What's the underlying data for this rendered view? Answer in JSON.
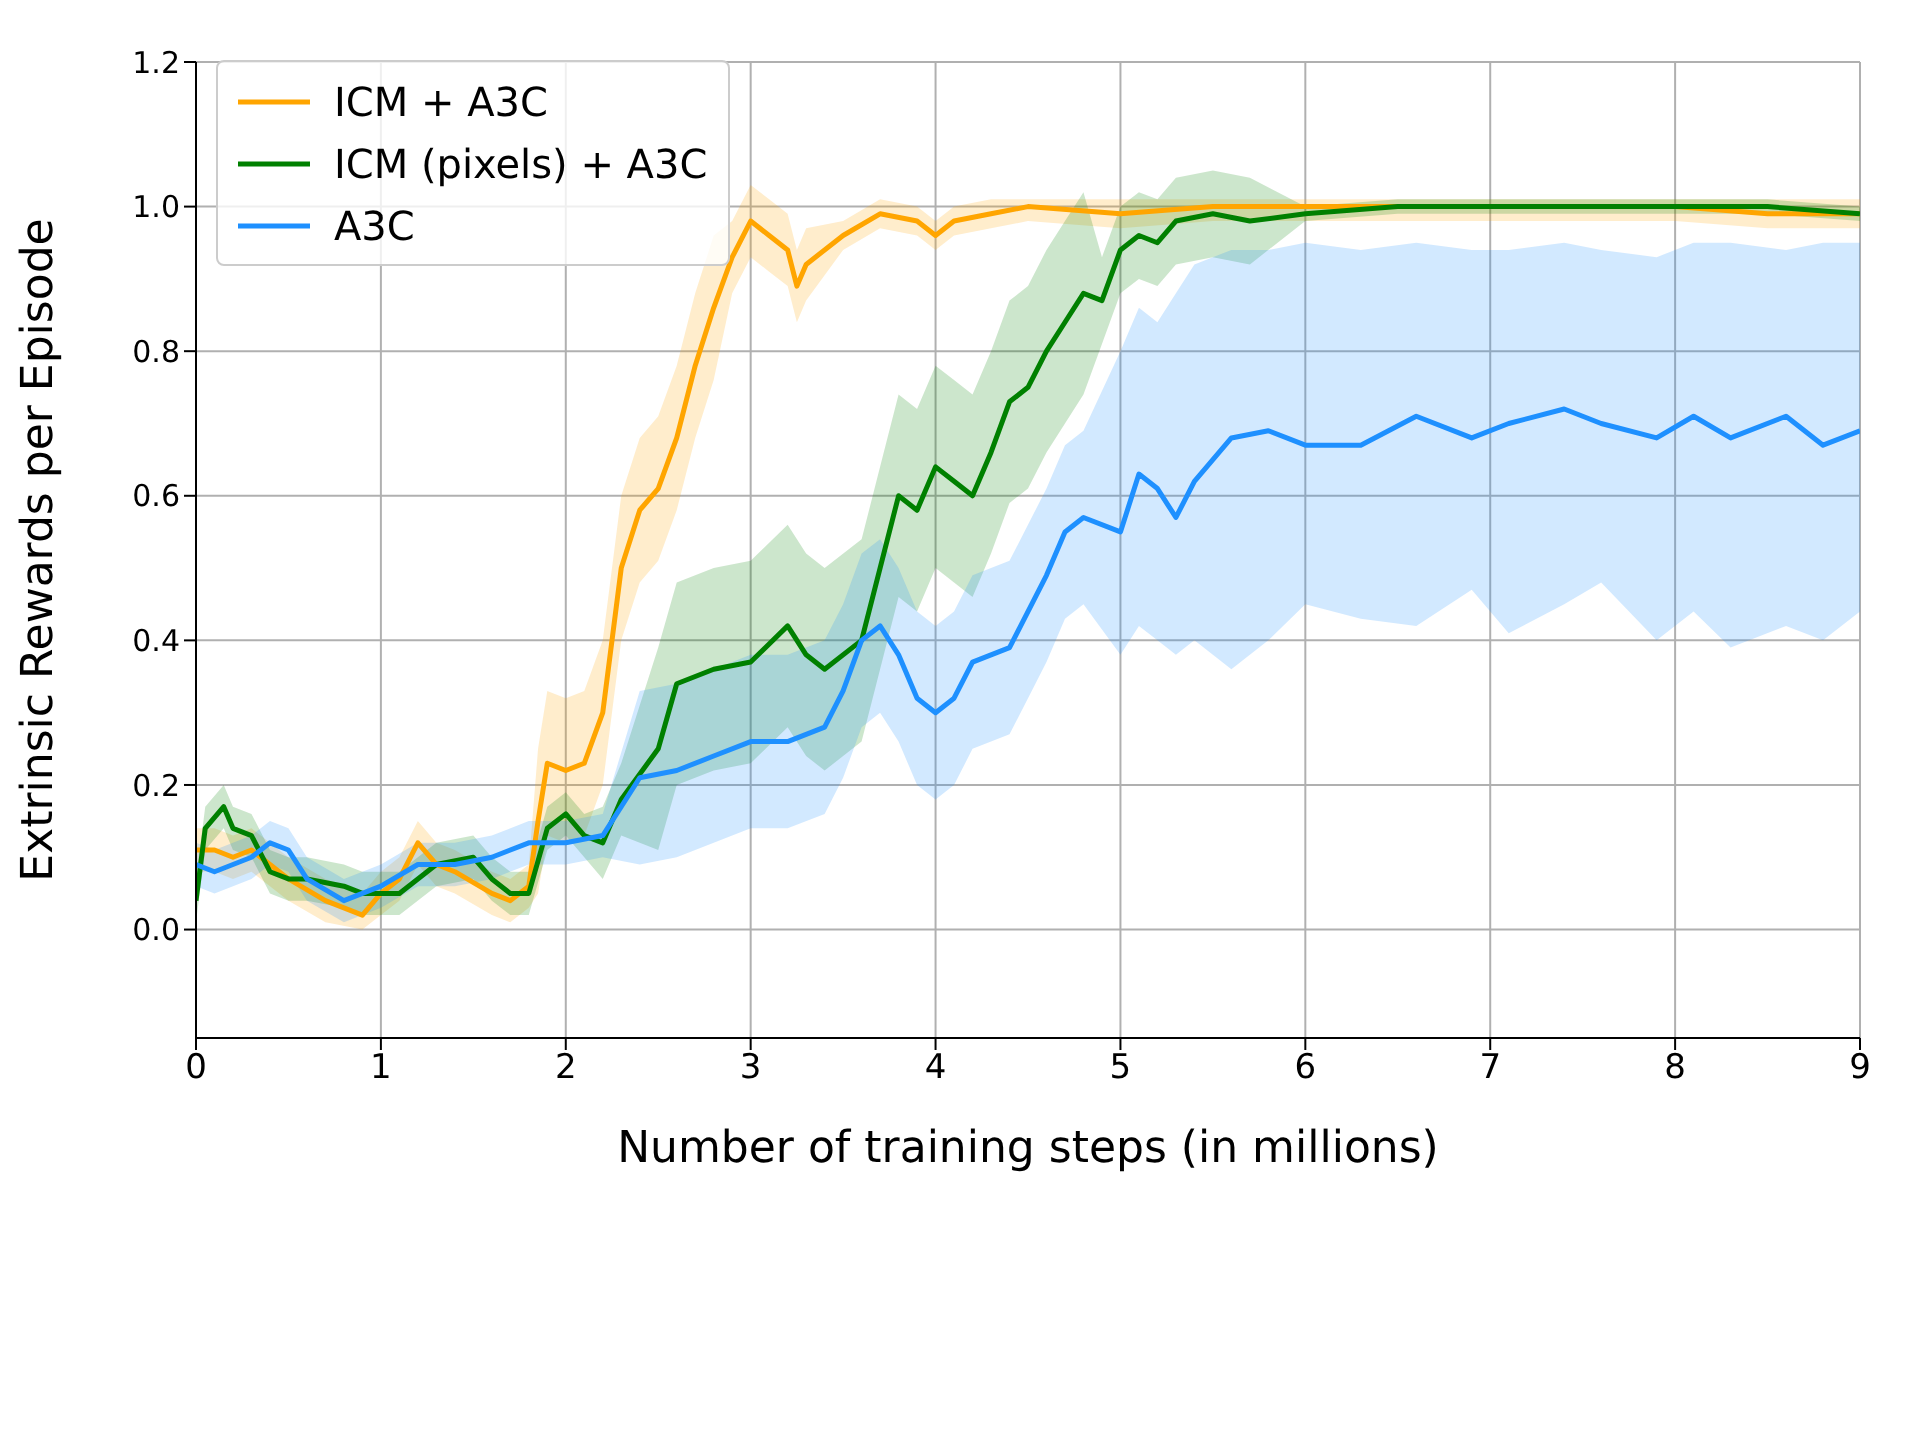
{
  "chart_data": {
    "type": "line",
    "xlabel": "Number of training steps (in millions)",
    "ylabel": "Extrinsic Rewards per Episode",
    "xlim": [
      0,
      9
    ],
    "xticks": [
      0,
      1,
      2,
      3,
      4,
      5,
      6,
      7,
      8,
      9
    ],
    "ylim": [
      -0.15,
      1.2
    ],
    "yticks": [
      {
        "value": 0,
        "label": "0.0"
      },
      {
        "value": 0.2,
        "label": "0.2"
      },
      {
        "value": 0.4,
        "label": "0.4"
      },
      {
        "value": 0.6,
        "label": "0.6"
      },
      {
        "value": 0.8,
        "label": "0.8"
      },
      {
        "value": 1.0,
        "label": "1.0"
      },
      {
        "value": 1.2,
        "label": "1.2"
      }
    ],
    "grid": true,
    "legend": "top left",
    "line_style": "solid",
    "series": [
      {
        "name": "ICM + A3C",
        "color": "#ffa500",
        "x": [
          0,
          0.1,
          0.2,
          0.3,
          0.4,
          0.5,
          0.7,
          0.9,
          1.0,
          1.1,
          1.2,
          1.3,
          1.4,
          1.6,
          1.7,
          1.8,
          1.85,
          1.9,
          2.0,
          2.1,
          2.2,
          2.3,
          2.4,
          2.5,
          2.6,
          2.7,
          2.8,
          2.9,
          3.0,
          3.1,
          3.2,
          3.25,
          3.3,
          3.5,
          3.7,
          3.9,
          4.0,
          4.1,
          4.3,
          4.5,
          5,
          5.5,
          6,
          7,
          8,
          8.5,
          9
        ],
        "values": [
          0.11,
          0.11,
          0.1,
          0.11,
          0.09,
          0.07,
          0.04,
          0.02,
          0.05,
          0.07,
          0.12,
          0.09,
          0.08,
          0.05,
          0.04,
          0.06,
          0.15,
          0.23,
          0.22,
          0.23,
          0.3,
          0.5,
          0.58,
          0.61,
          0.68,
          0.78,
          0.86,
          0.93,
          0.98,
          0.96,
          0.94,
          0.89,
          0.92,
          0.96,
          0.99,
          0.98,
          0.96,
          0.98,
          0.99,
          1.0,
          0.99,
          1.0,
          1.0,
          1.0,
          1.0,
          0.99,
          0.99
        ],
        "lower": [
          0.08,
          0.08,
          0.07,
          0.08,
          0.06,
          0.04,
          0.01,
          0.0,
          0.02,
          0.04,
          0.09,
          0.06,
          0.05,
          0.02,
          0.01,
          0.03,
          0.05,
          0.13,
          0.12,
          0.13,
          0.2,
          0.4,
          0.48,
          0.51,
          0.58,
          0.68,
          0.76,
          0.88,
          0.93,
          0.91,
          0.89,
          0.84,
          0.87,
          0.94,
          0.97,
          0.96,
          0.94,
          0.96,
          0.97,
          0.98,
          0.97,
          0.98,
          0.98,
          0.98,
          0.98,
          0.97,
          0.97
        ],
        "upper": [
          0.14,
          0.14,
          0.13,
          0.14,
          0.12,
          0.1,
          0.07,
          0.05,
          0.08,
          0.1,
          0.15,
          0.12,
          0.11,
          0.08,
          0.07,
          0.09,
          0.25,
          0.33,
          0.32,
          0.33,
          0.4,
          0.6,
          0.68,
          0.71,
          0.78,
          0.88,
          0.96,
          0.98,
          1.03,
          1.01,
          0.99,
          0.94,
          0.97,
          0.98,
          1.01,
          1.0,
          0.98,
          1.0,
          1.01,
          1.01,
          1.01,
          1.01,
          1.01,
          1.01,
          1.01,
          1.01,
          1.01
        ]
      },
      {
        "name": "ICM (pixels) + A3C",
        "color": "#008000",
        "x": [
          0,
          0.05,
          0.15,
          0.2,
          0.3,
          0.4,
          0.5,
          0.6,
          0.8,
          0.9,
          1.0,
          1.1,
          1.3,
          1.5,
          1.6,
          1.7,
          1.8,
          1.9,
          2.0,
          2.1,
          2.2,
          2.3,
          2.5,
          2.6,
          2.8,
          3.0,
          3.2,
          3.3,
          3.4,
          3.6,
          3.7,
          3.8,
          3.9,
          4.0,
          4.1,
          4.2,
          4.3,
          4.4,
          4.5,
          4.6,
          4.7,
          4.8,
          4.9,
          5.0,
          5.1,
          5.2,
          5.3,
          5.5,
          5.7,
          6,
          6.5,
          7,
          8,
          8.5,
          9
        ],
        "values": [
          0.04,
          0.14,
          0.17,
          0.14,
          0.13,
          0.08,
          0.07,
          0.07,
          0.06,
          0.05,
          0.05,
          0.05,
          0.09,
          0.1,
          0.07,
          0.05,
          0.05,
          0.14,
          0.16,
          0.13,
          0.12,
          0.18,
          0.25,
          0.34,
          0.36,
          0.37,
          0.42,
          0.38,
          0.36,
          0.4,
          0.5,
          0.6,
          0.58,
          0.64,
          0.62,
          0.6,
          0.66,
          0.73,
          0.75,
          0.8,
          0.84,
          0.88,
          0.87,
          0.94,
          0.96,
          0.95,
          0.98,
          0.99,
          0.98,
          0.99,
          1.0,
          1.0,
          1.0,
          1.0,
          0.99
        ],
        "lower": [
          0.01,
          0.11,
          0.14,
          0.11,
          0.1,
          0.05,
          0.04,
          0.04,
          0.03,
          0.02,
          0.02,
          0.02,
          0.06,
          0.07,
          0.04,
          0.02,
          0.02,
          0.11,
          0.13,
          0.1,
          0.07,
          0.13,
          0.11,
          0.2,
          0.22,
          0.23,
          0.28,
          0.24,
          0.22,
          0.26,
          0.36,
          0.46,
          0.44,
          0.5,
          0.48,
          0.46,
          0.52,
          0.59,
          0.61,
          0.66,
          0.7,
          0.74,
          0.81,
          0.88,
          0.9,
          0.89,
          0.92,
          0.93,
          0.92,
          0.98,
          0.99,
          0.99,
          0.99,
          0.99,
          0.98
        ],
        "upper": [
          0.07,
          0.17,
          0.2,
          0.17,
          0.16,
          0.11,
          0.1,
          0.1,
          0.09,
          0.08,
          0.08,
          0.08,
          0.12,
          0.13,
          0.1,
          0.08,
          0.08,
          0.17,
          0.19,
          0.16,
          0.17,
          0.23,
          0.39,
          0.48,
          0.5,
          0.51,
          0.56,
          0.52,
          0.5,
          0.54,
          0.64,
          0.74,
          0.72,
          0.78,
          0.76,
          0.74,
          0.8,
          0.87,
          0.89,
          0.94,
          0.98,
          1.02,
          0.93,
          1.0,
          1.02,
          1.01,
          1.04,
          1.05,
          1.04,
          1.0,
          1.01,
          1.01,
          1.01,
          1.01,
          1.0
        ]
      },
      {
        "name": "A3C",
        "color": "#1e90ff",
        "x": [
          0,
          0.1,
          0.3,
          0.4,
          0.5,
          0.6,
          0.8,
          1.0,
          1.2,
          1.4,
          1.6,
          1.8,
          2.0,
          2.2,
          2.4,
          2.6,
          2.8,
          3.0,
          3.2,
          3.4,
          3.5,
          3.6,
          3.7,
          3.8,
          3.9,
          4.0,
          4.1,
          4.2,
          4.4,
          4.6,
          4.7,
          4.8,
          5.0,
          5.1,
          5.2,
          5.3,
          5.4,
          5.6,
          5.8,
          6.0,
          6.3,
          6.6,
          6.9,
          7.1,
          7.4,
          7.6,
          7.9,
          8.1,
          8.3,
          8.6,
          8.8,
          9.0
        ],
        "values": [
          0.09,
          0.08,
          0.1,
          0.12,
          0.11,
          0.07,
          0.04,
          0.06,
          0.09,
          0.09,
          0.1,
          0.12,
          0.12,
          0.13,
          0.21,
          0.22,
          0.24,
          0.26,
          0.26,
          0.28,
          0.33,
          0.4,
          0.42,
          0.38,
          0.32,
          0.3,
          0.32,
          0.37,
          0.39,
          0.49,
          0.55,
          0.57,
          0.55,
          0.63,
          0.61,
          0.57,
          0.62,
          0.68,
          0.69,
          0.67,
          0.67,
          0.71,
          0.68,
          0.7,
          0.72,
          0.7,
          0.68,
          0.71,
          0.68,
          0.71,
          0.67,
          0.69
        ],
        "lower": [
          0.06,
          0.05,
          0.07,
          0.09,
          0.08,
          0.04,
          0.01,
          0.03,
          0.06,
          0.06,
          0.07,
          0.09,
          0.09,
          0.1,
          0.09,
          0.1,
          0.12,
          0.14,
          0.14,
          0.16,
          0.21,
          0.28,
          0.3,
          0.26,
          0.2,
          0.18,
          0.2,
          0.25,
          0.27,
          0.37,
          0.43,
          0.45,
          0.38,
          0.42,
          0.4,
          0.38,
          0.4,
          0.36,
          0.4,
          0.45,
          0.43,
          0.42,
          0.47,
          0.41,
          0.45,
          0.48,
          0.4,
          0.44,
          0.39,
          0.42,
          0.4,
          0.44
        ],
        "upper": [
          0.12,
          0.11,
          0.13,
          0.15,
          0.14,
          0.1,
          0.07,
          0.09,
          0.12,
          0.12,
          0.13,
          0.15,
          0.15,
          0.16,
          0.33,
          0.34,
          0.36,
          0.38,
          0.38,
          0.4,
          0.45,
          0.52,
          0.54,
          0.5,
          0.44,
          0.42,
          0.44,
          0.49,
          0.51,
          0.61,
          0.67,
          0.69,
          0.8,
          0.86,
          0.84,
          0.88,
          0.92,
          0.94,
          0.94,
          0.95,
          0.94,
          0.95,
          0.94,
          0.94,
          0.95,
          0.94,
          0.93,
          0.95,
          0.95,
          0.94,
          0.95,
          0.95
        ]
      }
    ]
  }
}
